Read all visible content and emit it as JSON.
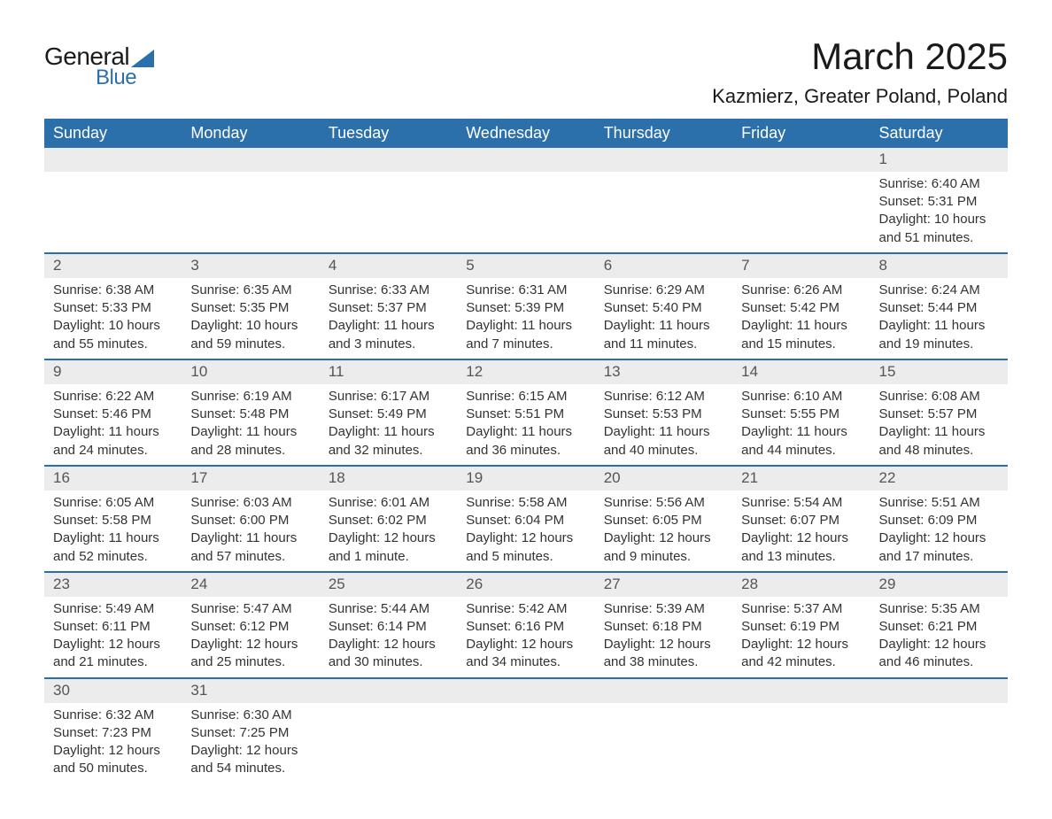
{
  "logo": {
    "text1": "General",
    "text2": "Blue",
    "triangle_color": "#2b6fab"
  },
  "title": "March 2025",
  "location": "Kazmierz, Greater Poland, Poland",
  "colors": {
    "header_bg": "#2b6fab",
    "header_fg": "#ffffff",
    "daynum_bg": "#ececec",
    "row_divider": "#2b6fab",
    "text": "#333333",
    "background": "#ffffff"
  },
  "typography": {
    "title_fontsize": 42,
    "location_fontsize": 22,
    "dayheader_fontsize": 18,
    "daynum_fontsize": 17,
    "detail_fontsize": 15
  },
  "day_headers": [
    "Sunday",
    "Monday",
    "Tuesday",
    "Wednesday",
    "Thursday",
    "Friday",
    "Saturday"
  ],
  "labels": {
    "sunrise": "Sunrise:",
    "sunset": "Sunset:",
    "daylight": "Daylight:"
  },
  "weeks": [
    [
      null,
      null,
      null,
      null,
      null,
      null,
      {
        "n": "1",
        "sunrise": "6:40 AM",
        "sunset": "5:31 PM",
        "daylight": "10 hours and 51 minutes."
      }
    ],
    [
      {
        "n": "2",
        "sunrise": "6:38 AM",
        "sunset": "5:33 PM",
        "daylight": "10 hours and 55 minutes."
      },
      {
        "n": "3",
        "sunrise": "6:35 AM",
        "sunset": "5:35 PM",
        "daylight": "10 hours and 59 minutes."
      },
      {
        "n": "4",
        "sunrise": "6:33 AM",
        "sunset": "5:37 PM",
        "daylight": "11 hours and 3 minutes."
      },
      {
        "n": "5",
        "sunrise": "6:31 AM",
        "sunset": "5:39 PM",
        "daylight": "11 hours and 7 minutes."
      },
      {
        "n": "6",
        "sunrise": "6:29 AM",
        "sunset": "5:40 PM",
        "daylight": "11 hours and 11 minutes."
      },
      {
        "n": "7",
        "sunrise": "6:26 AM",
        "sunset": "5:42 PM",
        "daylight": "11 hours and 15 minutes."
      },
      {
        "n": "8",
        "sunrise": "6:24 AM",
        "sunset": "5:44 PM",
        "daylight": "11 hours and 19 minutes."
      }
    ],
    [
      {
        "n": "9",
        "sunrise": "6:22 AM",
        "sunset": "5:46 PM",
        "daylight": "11 hours and 24 minutes."
      },
      {
        "n": "10",
        "sunrise": "6:19 AM",
        "sunset": "5:48 PM",
        "daylight": "11 hours and 28 minutes."
      },
      {
        "n": "11",
        "sunrise": "6:17 AM",
        "sunset": "5:49 PM",
        "daylight": "11 hours and 32 minutes."
      },
      {
        "n": "12",
        "sunrise": "6:15 AM",
        "sunset": "5:51 PM",
        "daylight": "11 hours and 36 minutes."
      },
      {
        "n": "13",
        "sunrise": "6:12 AM",
        "sunset": "5:53 PM",
        "daylight": "11 hours and 40 minutes."
      },
      {
        "n": "14",
        "sunrise": "6:10 AM",
        "sunset": "5:55 PM",
        "daylight": "11 hours and 44 minutes."
      },
      {
        "n": "15",
        "sunrise": "6:08 AM",
        "sunset": "5:57 PM",
        "daylight": "11 hours and 48 minutes."
      }
    ],
    [
      {
        "n": "16",
        "sunrise": "6:05 AM",
        "sunset": "5:58 PM",
        "daylight": "11 hours and 52 minutes."
      },
      {
        "n": "17",
        "sunrise": "6:03 AM",
        "sunset": "6:00 PM",
        "daylight": "11 hours and 57 minutes."
      },
      {
        "n": "18",
        "sunrise": "6:01 AM",
        "sunset": "6:02 PM",
        "daylight": "12 hours and 1 minute."
      },
      {
        "n": "19",
        "sunrise": "5:58 AM",
        "sunset": "6:04 PM",
        "daylight": "12 hours and 5 minutes."
      },
      {
        "n": "20",
        "sunrise": "5:56 AM",
        "sunset": "6:05 PM",
        "daylight": "12 hours and 9 minutes."
      },
      {
        "n": "21",
        "sunrise": "5:54 AM",
        "sunset": "6:07 PM",
        "daylight": "12 hours and 13 minutes."
      },
      {
        "n": "22",
        "sunrise": "5:51 AM",
        "sunset": "6:09 PM",
        "daylight": "12 hours and 17 minutes."
      }
    ],
    [
      {
        "n": "23",
        "sunrise": "5:49 AM",
        "sunset": "6:11 PM",
        "daylight": "12 hours and 21 minutes."
      },
      {
        "n": "24",
        "sunrise": "5:47 AM",
        "sunset": "6:12 PM",
        "daylight": "12 hours and 25 minutes."
      },
      {
        "n": "25",
        "sunrise": "5:44 AM",
        "sunset": "6:14 PM",
        "daylight": "12 hours and 30 minutes."
      },
      {
        "n": "26",
        "sunrise": "5:42 AM",
        "sunset": "6:16 PM",
        "daylight": "12 hours and 34 minutes."
      },
      {
        "n": "27",
        "sunrise": "5:39 AM",
        "sunset": "6:18 PM",
        "daylight": "12 hours and 38 minutes."
      },
      {
        "n": "28",
        "sunrise": "5:37 AM",
        "sunset": "6:19 PM",
        "daylight": "12 hours and 42 minutes."
      },
      {
        "n": "29",
        "sunrise": "5:35 AM",
        "sunset": "6:21 PM",
        "daylight": "12 hours and 46 minutes."
      }
    ],
    [
      {
        "n": "30",
        "sunrise": "6:32 AM",
        "sunset": "7:23 PM",
        "daylight": "12 hours and 50 minutes."
      },
      {
        "n": "31",
        "sunrise": "6:30 AM",
        "sunset": "7:25 PM",
        "daylight": "12 hours and 54 minutes."
      },
      null,
      null,
      null,
      null,
      null
    ]
  ]
}
